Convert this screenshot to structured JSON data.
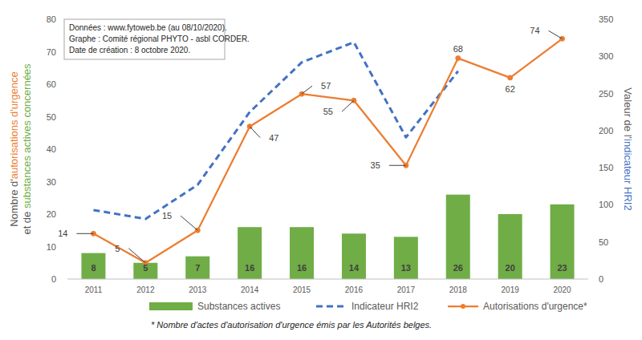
{
  "chart_data": {
    "type": "combo",
    "annotations": [
      "Données : www.fytoweb.be (au 08/10/2020).",
      "Graphe : Comité régional PHYTO - asbl CORDER.",
      "Date de création : 8 octobre 2020."
    ],
    "footnote": "* Nombre d'actes d'autorisation d'urgence émis par les Autorités belges.",
    "categories": [
      "2011",
      "2012",
      "2013",
      "2014",
      "2015",
      "2016",
      "2017",
      "2018",
      "2019",
      "2020"
    ],
    "ylabel": [
      [
        {
          "text": "Nombre d'"
        },
        {
          "text": "autorisations d'urgence",
          "color": "#ed7d31"
        }
      ],
      [
        {
          "text": "et de "
        },
        {
          "text": "substances actives concernées",
          "color": "#70ad47"
        }
      ]
    ],
    "y2label": [
      {
        "text": "Valeur de l'"
      },
      {
        "text": "indicateur HRI2",
        "color": "#4472c4"
      }
    ],
    "ylim": [
      0,
      80
    ],
    "yticks": [
      0,
      10,
      20,
      30,
      40,
      50,
      60,
      70,
      80
    ],
    "y2lim": [
      0,
      350
    ],
    "y2ticks": [
      0,
      50,
      100,
      150,
      200,
      250,
      300,
      350
    ],
    "grid": false,
    "legend": "bottom",
    "series": [
      {
        "name": "Substances actives",
        "type": "bar",
        "color": "#70ad47",
        "data_labels": true,
        "values": [
          8,
          5,
          7,
          16,
          16,
          14,
          13,
          26,
          20,
          23
        ]
      },
      {
        "name": "Indicateur HRI2",
        "type": "line",
        "axis": "y2",
        "color": "#4472c4",
        "line_style": "dashed",
        "marker": "none",
        "values": [
          93,
          81,
          127,
          225,
          292,
          319,
          191,
          280,
          null,
          null
        ]
      },
      {
        "name": "Autorisations d'urgence*",
        "type": "line",
        "color": "#ed7d31",
        "line_style": "solid",
        "marker": "circle",
        "data_labels": true,
        "values": [
          14,
          5,
          15,
          47,
          57,
          55,
          35,
          68,
          62,
          74
        ]
      }
    ]
  }
}
